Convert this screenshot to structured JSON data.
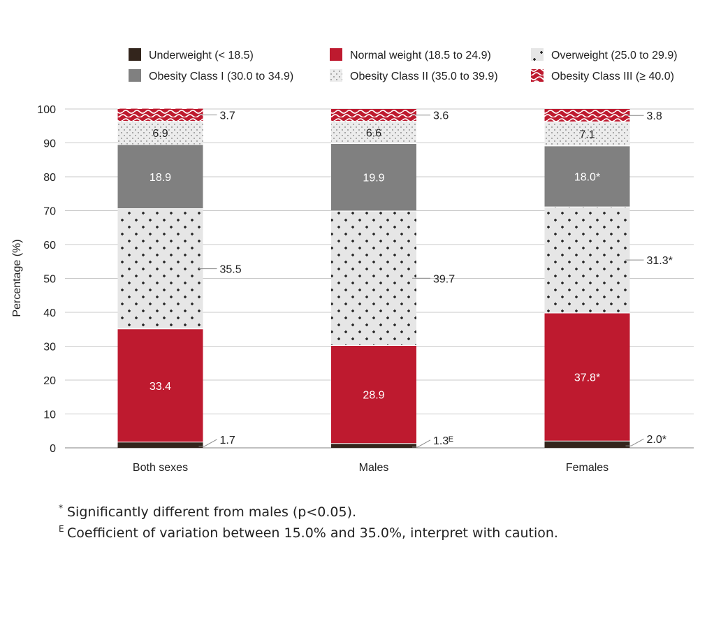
{
  "chart_data": {
    "type": "bar",
    "stacked": true,
    "ylabel": "Percentage (%)",
    "xlabel": "",
    "ylim": [
      0,
      100
    ],
    "yticks": [
      0,
      10,
      20,
      30,
      40,
      50,
      60,
      70,
      80,
      90,
      100
    ],
    "grid": true,
    "legend_position": "top",
    "categories": [
      "Both sexes",
      "Males",
      "Females"
    ],
    "series": [
      {
        "name": "Underweight (< 18.5)",
        "pattern": "solid",
        "color": "#33251c",
        "values": [
          1.7,
          1.3,
          2.0
        ],
        "labels": [
          "1.7",
          "1.3ᴱ",
          "2.0*"
        ],
        "label_pos": "outside"
      },
      {
        "name": "Normal weight (18.5 to 24.9)",
        "pattern": "solid",
        "color": "#be1a2f",
        "values": [
          33.4,
          28.9,
          37.8
        ],
        "labels": [
          "33.4",
          "28.9",
          "37.8*"
        ],
        "label_pos": "inside"
      },
      {
        "name": "Overweight (25.0 to 29.9)",
        "pattern": "crosses",
        "color": "#e6e6e6",
        "values": [
          35.5,
          39.7,
          31.3
        ],
        "labels": [
          "35.5",
          "39.7",
          "31.3*"
        ],
        "label_pos": "outside"
      },
      {
        "name": "Obesity Class I (30.0 to 34.9)",
        "pattern": "solid",
        "color": "#808080",
        "values": [
          18.9,
          19.9,
          18.0
        ],
        "labels": [
          "18.9",
          "19.9",
          "18.0*"
        ],
        "label_pos": "inside"
      },
      {
        "name": "Obesity Class II (35.0 to 39.9)",
        "pattern": "dots",
        "color": "#ececec",
        "values": [
          6.9,
          6.6,
          7.1
        ],
        "labels": [
          "6.9",
          "6.6",
          "7.1"
        ],
        "label_pos": "inside"
      },
      {
        "name": "Obesity Class III (≥ 40.0)",
        "pattern": "squiggle",
        "color": "#be1a2f",
        "values": [
          3.7,
          3.6,
          3.8
        ],
        "labels": [
          "3.7",
          "3.6",
          "3.8"
        ],
        "label_pos": "outside"
      }
    ]
  },
  "footnotes": [
    {
      "mark": "*",
      "text": "Significantly different from males (p<0.05)."
    },
    {
      "mark": "E",
      "text": "Coefficient of variation between 15.0% and 35.0%, interpret with caution."
    }
  ]
}
